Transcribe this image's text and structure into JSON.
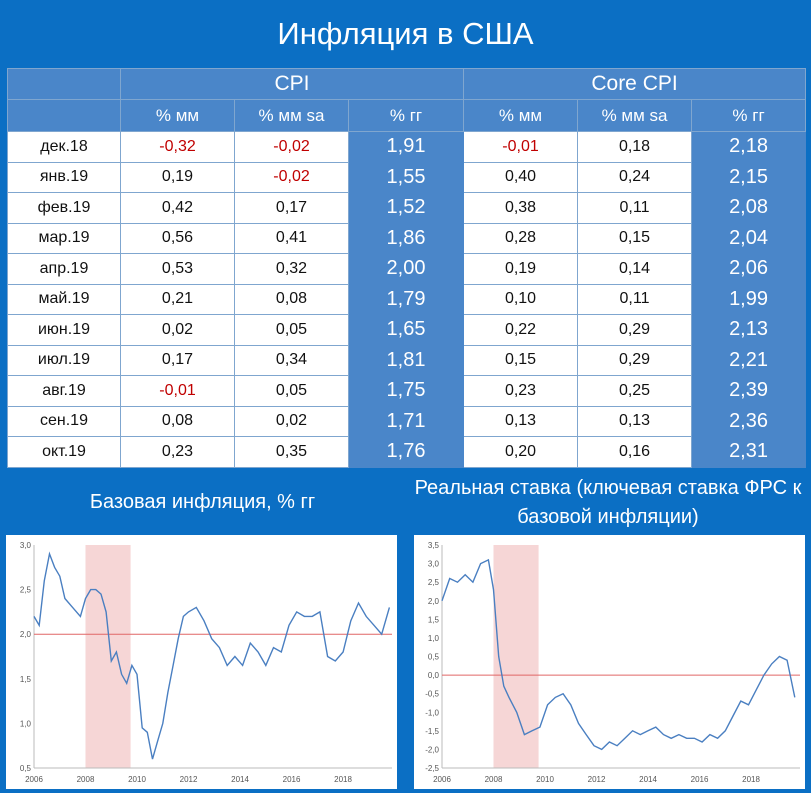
{
  "title": "Инфляция в США",
  "table": {
    "groups": [
      "CPI",
      "Core CPI"
    ],
    "columns": [
      "% мм",
      "% мм sa",
      "% гг",
      "% мм",
      "% мм sa",
      "% гг"
    ],
    "rows": [
      {
        "month": "дек.18",
        "v": [
          "-0,32",
          "-0,02",
          "1,91",
          "-0,01",
          "0,18",
          "2,18"
        ]
      },
      {
        "month": "янв.19",
        "v": [
          "0,19",
          "-0,02",
          "1,55",
          "0,40",
          "0,24",
          "2,15"
        ]
      },
      {
        "month": "фев.19",
        "v": [
          "0,42",
          "0,17",
          "1,52",
          "0,38",
          "0,11",
          "2,08"
        ]
      },
      {
        "month": "мар.19",
        "v": [
          "0,56",
          "0,41",
          "1,86",
          "0,28",
          "0,15",
          "2,04"
        ]
      },
      {
        "month": "апр.19",
        "v": [
          "0,53",
          "0,32",
          "2,00",
          "0,19",
          "0,14",
          "2,06"
        ]
      },
      {
        "month": "май.19",
        "v": [
          "0,21",
          "0,08",
          "1,79",
          "0,10",
          "0,11",
          "1,99"
        ]
      },
      {
        "month": "июн.19",
        "v": [
          "0,02",
          "0,05",
          "1,65",
          "0,22",
          "0,29",
          "2,13"
        ]
      },
      {
        "month": "июл.19",
        "v": [
          "0,17",
          "0,34",
          "1,81",
          "0,15",
          "0,29",
          "2,21"
        ]
      },
      {
        "month": "авг.19",
        "v": [
          "-0,01",
          "0,05",
          "1,75",
          "0,23",
          "0,25",
          "2,39"
        ]
      },
      {
        "month": "сен.19",
        "v": [
          "0,08",
          "0,02",
          "1,71",
          "0,13",
          "0,13",
          "2,36"
        ]
      },
      {
        "month": "окт.19",
        "v": [
          "0,23",
          "0,35",
          "1,76",
          "0,20",
          "0,16",
          "2,31"
        ]
      }
    ]
  },
  "colors": {
    "background": "#0b6fc4",
    "header": "#4a86c9",
    "negative": "#c00000",
    "line": "#4a7fc1",
    "refline": "#e06666",
    "recession": "#f6d6d6"
  },
  "chart_data": [
    {
      "type": "line",
      "title": "Базовая инфляция, % гг",
      "xlim": [
        2006,
        2019.9
      ],
      "ylim": [
        0.5,
        3.0
      ],
      "xticks": [
        "2006",
        "2008",
        "2010",
        "2012",
        "2014",
        "2016",
        "2018"
      ],
      "yticks": [
        "0,5",
        "1,0",
        "1,5",
        "2,0",
        "2,5",
        "3,0"
      ],
      "reference_y": 2.0,
      "shaded_x": [
        2008.0,
        2009.75
      ],
      "x": [
        2006.0,
        2006.2,
        2006.4,
        2006.6,
        2006.8,
        2007.0,
        2007.2,
        2007.5,
        2007.8,
        2008.0,
        2008.2,
        2008.4,
        2008.6,
        2008.8,
        2009.0,
        2009.2,
        2009.4,
        2009.6,
        2009.8,
        2010.0,
        2010.2,
        2010.4,
        2010.6,
        2010.8,
        2011.0,
        2011.2,
        2011.4,
        2011.6,
        2011.8,
        2012.0,
        2012.3,
        2012.6,
        2012.9,
        2013.2,
        2013.5,
        2013.8,
        2014.1,
        2014.4,
        2014.7,
        2015.0,
        2015.3,
        2015.6,
        2015.9,
        2016.2,
        2016.5,
        2016.8,
        2017.1,
        2017.4,
        2017.7,
        2018.0,
        2018.3,
        2018.6,
        2018.9,
        2019.2,
        2019.5,
        2019.8
      ],
      "y": [
        2.2,
        2.1,
        2.6,
        2.9,
        2.75,
        2.65,
        2.4,
        2.3,
        2.2,
        2.4,
        2.5,
        2.5,
        2.45,
        2.25,
        1.7,
        1.8,
        1.55,
        1.45,
        1.65,
        1.55,
        0.95,
        0.9,
        0.6,
        0.8,
        1.0,
        1.35,
        1.65,
        1.95,
        2.2,
        2.25,
        2.3,
        2.15,
        1.95,
        1.85,
        1.65,
        1.75,
        1.65,
        1.9,
        1.8,
        1.65,
        1.85,
        1.8,
        2.1,
        2.25,
        2.2,
        2.2,
        2.25,
        1.75,
        1.7,
        1.8,
        2.15,
        2.35,
        2.2,
        2.1,
        2.0,
        2.3
      ]
    },
    {
      "type": "line",
      "title": "Реальная ставка (ключевая ставка ФРС к базовой инфляции)",
      "xlim": [
        2006,
        2019.9
      ],
      "ylim": [
        -2.5,
        3.5
      ],
      "xticks": [
        "2006",
        "2008",
        "2010",
        "2012",
        "2014",
        "2016",
        "2018"
      ],
      "yticks": [
        "-2,5",
        "-2,0",
        "-1,5",
        "-1,0",
        "-0,5",
        "0,0",
        "0,5",
        "1,0",
        "1,5",
        "2,0",
        "2,5",
        "3,0",
        "3,5"
      ],
      "reference_y": 0.0,
      "shaded_x": [
        2008.0,
        2009.75
      ],
      "x": [
        2006.0,
        2006.3,
        2006.6,
        2006.9,
        2007.2,
        2007.5,
        2007.8,
        2008.0,
        2008.2,
        2008.4,
        2008.6,
        2008.9,
        2009.2,
        2009.5,
        2009.8,
        2010.1,
        2010.4,
        2010.7,
        2011.0,
        2011.3,
        2011.6,
        2011.9,
        2012.2,
        2012.5,
        2012.8,
        2013.1,
        2013.4,
        2013.7,
        2014.0,
        2014.3,
        2014.6,
        2014.9,
        2015.2,
        2015.5,
        2015.8,
        2016.1,
        2016.4,
        2016.7,
        2017.0,
        2017.3,
        2017.6,
        2017.9,
        2018.2,
        2018.5,
        2018.8,
        2019.1,
        2019.4,
        2019.7
      ],
      "y": [
        2.0,
        2.6,
        2.5,
        2.7,
        2.5,
        3.0,
        3.1,
        2.3,
        0.5,
        -0.3,
        -0.6,
        -1.0,
        -1.6,
        -1.5,
        -1.4,
        -0.8,
        -0.6,
        -0.5,
        -0.8,
        -1.3,
        -1.6,
        -1.9,
        -2.0,
        -1.8,
        -1.9,
        -1.7,
        -1.5,
        -1.6,
        -1.5,
        -1.4,
        -1.6,
        -1.7,
        -1.6,
        -1.7,
        -1.7,
        -1.8,
        -1.6,
        -1.7,
        -1.5,
        -1.1,
        -0.7,
        -0.8,
        -0.4,
        0.0,
        0.3,
        0.5,
        0.4,
        -0.6
      ]
    }
  ]
}
